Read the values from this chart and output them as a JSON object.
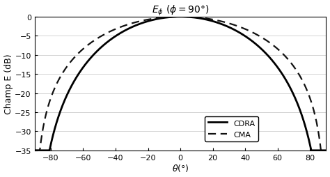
{
  "title": "$E_{\\phi}\\ (\\phi=90°)$",
  "xlabel": "$\\theta(°)$",
  "ylabel": "Champ E (dB)",
  "xlim": [
    -90,
    90
  ],
  "ylim": [
    -35,
    0
  ],
  "yticks": [
    0,
    -5,
    -10,
    -15,
    -20,
    -25,
    -30,
    -35
  ],
  "xticks": [
    -80,
    -60,
    -40,
    -20,
    0,
    20,
    40,
    60,
    80
  ],
  "cdra_color": "#000000",
  "cma_color": "#111111",
  "background_color": "#ffffff",
  "grid_color": "#cccccc",
  "legend_labels": [
    "CDRA",
    "CMA"
  ],
  "cdra_linewidth": 2.0,
  "cma_linewidth": 1.6,
  "cdra_n": 2.2,
  "cma_n": 1.4,
  "figsize": [
    4.74,
    2.55
  ],
  "dpi": 100
}
